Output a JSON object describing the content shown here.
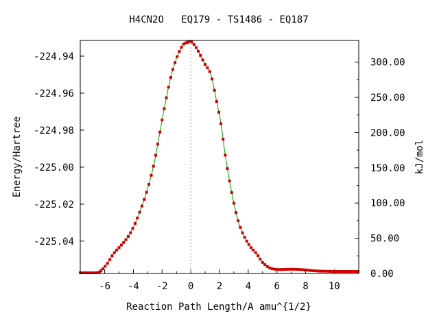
{
  "chart_data": {
    "type": "scatter",
    "title": "H4CN2O   EQ179 - TS1486 - EQ187",
    "xlabel": "Reaction Path Length/A amu^{1/2}",
    "ylabel": "Energy/Hartree",
    "y2label": "kJ/mol",
    "xlim": [
      -7.7,
      11.7
    ],
    "ylim": [
      -225.0575,
      -224.9315
    ],
    "x_ticks": [
      -6,
      -4,
      -2,
      0,
      2,
      4,
      6,
      8,
      10
    ],
    "x_tick_labels": [
      "-6",
      "-4",
      "-2",
      "0",
      "2",
      "4",
      "6",
      "8",
      "10"
    ],
    "y_ticks": [
      -224.94,
      -224.96,
      -224.98,
      -225.0,
      -225.02,
      -225.04
    ],
    "y_tick_labels": [
      "-224.94",
      "-224.96",
      "-224.98",
      "-225.00",
      "-225.02",
      "-225.04"
    ],
    "y2_ticks": [
      0,
      50,
      100,
      150,
      200,
      250,
      300
    ],
    "y2_tick_labels": [
      "0.00",
      "50.00",
      "100.00",
      "150.00",
      "200.00",
      "250.00",
      "300.00"
    ],
    "y2_zero_energy": -225.0575,
    "hartree_to_kjmol": 2625.5,
    "ts_x": 0,
    "grid": false,
    "colors": {
      "line": "#00a000",
      "points": "#d00000",
      "ts_marker": "#a0a0a0"
    },
    "series": [
      {
        "x": [
          -7.7,
          -6.5,
          -6.2,
          -5.8,
          -5.4,
          -5.0,
          -4.6,
          -4.2,
          -3.8,
          -3.4,
          -3.0,
          -2.6,
          -2.3,
          -2.0,
          -1.7,
          -1.4,
          -1.1,
          -0.8,
          -0.5,
          -0.2,
          0.0,
          0.3,
          0.6,
          1.0,
          1.4,
          1.8,
          2.1,
          2.4,
          2.7,
          3.0,
          3.3,
          3.6,
          3.9,
          4.2,
          4.6,
          5.0,
          5.5,
          6.0,
          6.5,
          7.0,
          7.5,
          8.0,
          8.5,
          9.0,
          9.5,
          10.0,
          10.5,
          11.0,
          11.7
        ],
        "y": [
          -225.0575,
          -225.057,
          -225.0555,
          -225.052,
          -225.047,
          -225.0435,
          -225.04,
          -225.0355,
          -225.029,
          -225.021,
          -225.0115,
          -224.9995,
          -224.9875,
          -224.9745,
          -224.9625,
          -224.9515,
          -224.9435,
          -224.9375,
          -224.9335,
          -224.9325,
          -224.932,
          -224.9345,
          -224.9385,
          -224.9445,
          -224.95,
          -224.9645,
          -224.9765,
          -224.9935,
          -225.0075,
          -225.0195,
          -225.029,
          -225.0355,
          -225.04,
          -225.0435,
          -225.047,
          -225.0515,
          -225.0545,
          -225.0553,
          -225.0553,
          -225.0552,
          -225.0553,
          -225.0556,
          -225.056,
          -225.0562,
          -225.0563,
          -225.0564,
          -225.0564,
          -225.0564,
          -225.0564
        ]
      }
    ]
  }
}
